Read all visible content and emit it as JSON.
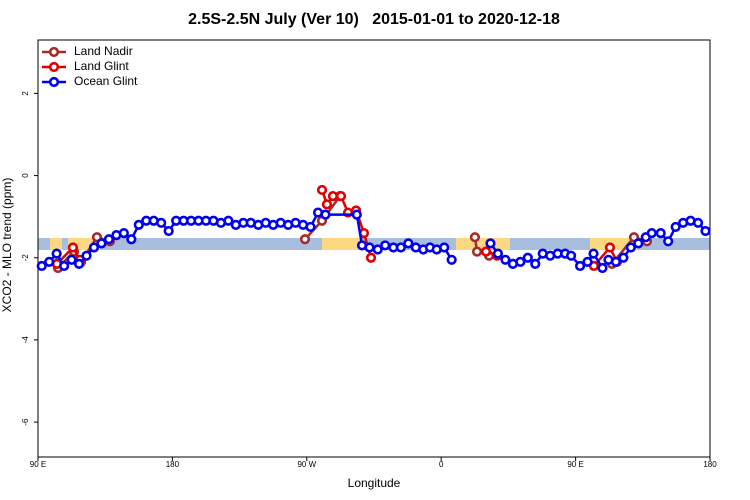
{
  "chart_data": {
    "type": "line",
    "title": "2.5S-2.5N July (Ver 10)   2015-01-01 to 2020-12-18",
    "x_label": "Longitude",
    "y_label": "XCO2 - MLO trend (ppm)",
    "xlim": [
      90,
      540
    ],
    "xticks": [
      {
        "value": 90,
        "label": "90 E"
      },
      {
        "value": 180,
        "label": "180"
      },
      {
        "value": 270,
        "label": "90 W"
      },
      {
        "value": 360,
        "label": "0"
      },
      {
        "value": 450,
        "label": "90 E"
      },
      {
        "value": 540,
        "label": "180"
      }
    ],
    "ylim": [
      -6.85,
      3.3
    ],
    "yticks": [
      -6,
      -4,
      -2,
      0,
      2
    ],
    "legend": "top-left",
    "series": [
      {
        "name": "Land Nadir",
        "color": "#a52a2a",
        "x": [
          103.4,
          114.1,
          118.8,
          129.5,
          138.2,
          null,
          268.8,
          280.2,
          292.2,
          null,
          382.6,
          384,
          392,
          null,
          474.4,
          489.1,
          497.8
        ],
        "values": [
          -2.25,
          -1.85,
          -2.1,
          -1.5,
          -1.6,
          null,
          -1.55,
          -1.1,
          -0.5,
          null,
          -1.5,
          -1.85,
          -1.95,
          null,
          -2.15,
          -1.5,
          -1.6
        ]
      },
      {
        "name": "Land Glint",
        "color": "#e00000",
        "x": [
          102.7,
          113.4,
          118.1,
          null,
          280.2,
          283.5,
          287.5,
          292.9,
          297.6,
          303,
          308.3,
          313,
          null,
          390,
          397.4,
          null,
          462.3,
          473,
          477.7
        ],
        "values": [
          -2.15,
          -1.75,
          -2.05,
          null,
          -0.35,
          -0.7,
          -0.5,
          -0.5,
          -0.9,
          -0.85,
          -1.4,
          -2.0,
          null,
          -1.85,
          -1.95,
          null,
          -2.2,
          -1.75,
          -2.1
        ]
      },
      {
        "name": "Ocean Glint",
        "color": "#0000ee",
        "x": [
          92.5,
          97.5,
          102.5,
          107.5,
          112.5,
          117.5,
          122.5,
          127.5,
          132.5,
          137.5,
          142.5,
          147.5,
          152.5,
          157.5,
          162.5,
          167.5,
          172.5,
          177.5,
          182.5,
          187.5,
          192.5,
          197.5,
          202.5,
          207.5,
          212.5,
          217.5,
          222.5,
          227.5,
          232.5,
          237.5,
          242.5,
          247.5,
          252.5,
          257.5,
          262.5,
          267.5,
          272.5,
          277.5,
          282.5,
          303.5,
          307,
          312,
          317.5,
          322.5,
          328,
          333,
          338,
          343,
          348,
          352.5,
          357,
          362,
          367,
          null,
          393,
          398,
          403,
          408,
          413,
          418,
          423,
          428,
          433,
          438,
          443,
          447,
          453,
          458,
          462,
          468,
          472,
          477,
          482,
          487,
          492,
          497,
          501,
          507,
          512,
          517,
          522,
          527,
          532,
          537
        ],
        "values": [
          -2.2,
          -2.1,
          -1.9,
          -2.2,
          -2.05,
          -2.15,
          -1.95,
          -1.75,
          -1.65,
          -1.55,
          -1.45,
          -1.4,
          -1.55,
          -1.2,
          -1.1,
          -1.1,
          -1.15,
          -1.35,
          -1.1,
          -1.1,
          -1.1,
          -1.1,
          -1.1,
          -1.1,
          -1.15,
          -1.1,
          -1.2,
          -1.15,
          -1.15,
          -1.2,
          -1.15,
          -1.2,
          -1.15,
          -1.2,
          -1.15,
          -1.2,
          -1.25,
          -0.9,
          -0.95,
          -0.95,
          -1.7,
          -1.75,
          -1.8,
          -1.7,
          -1.75,
          -1.75,
          -1.65,
          -1.75,
          -1.8,
          -1.75,
          -1.8,
          -1.75,
          -2.05,
          null,
          -1.65,
          -1.9,
          -2.05,
          -2.15,
          -2.1,
          -2.0,
          -2.15,
          -1.9,
          -1.95,
          -1.9,
          -1.9,
          -1.95,
          -2.2,
          -2.1,
          -1.9,
          -2.25,
          -2.05,
          -2.1,
          -2.0,
          -1.75,
          -1.65,
          -1.5,
          -1.4,
          -1.4,
          -1.6,
          -1.25,
          -1.15,
          -1.1,
          -1.15,
          -1.35
        ]
      }
    ]
  }
}
